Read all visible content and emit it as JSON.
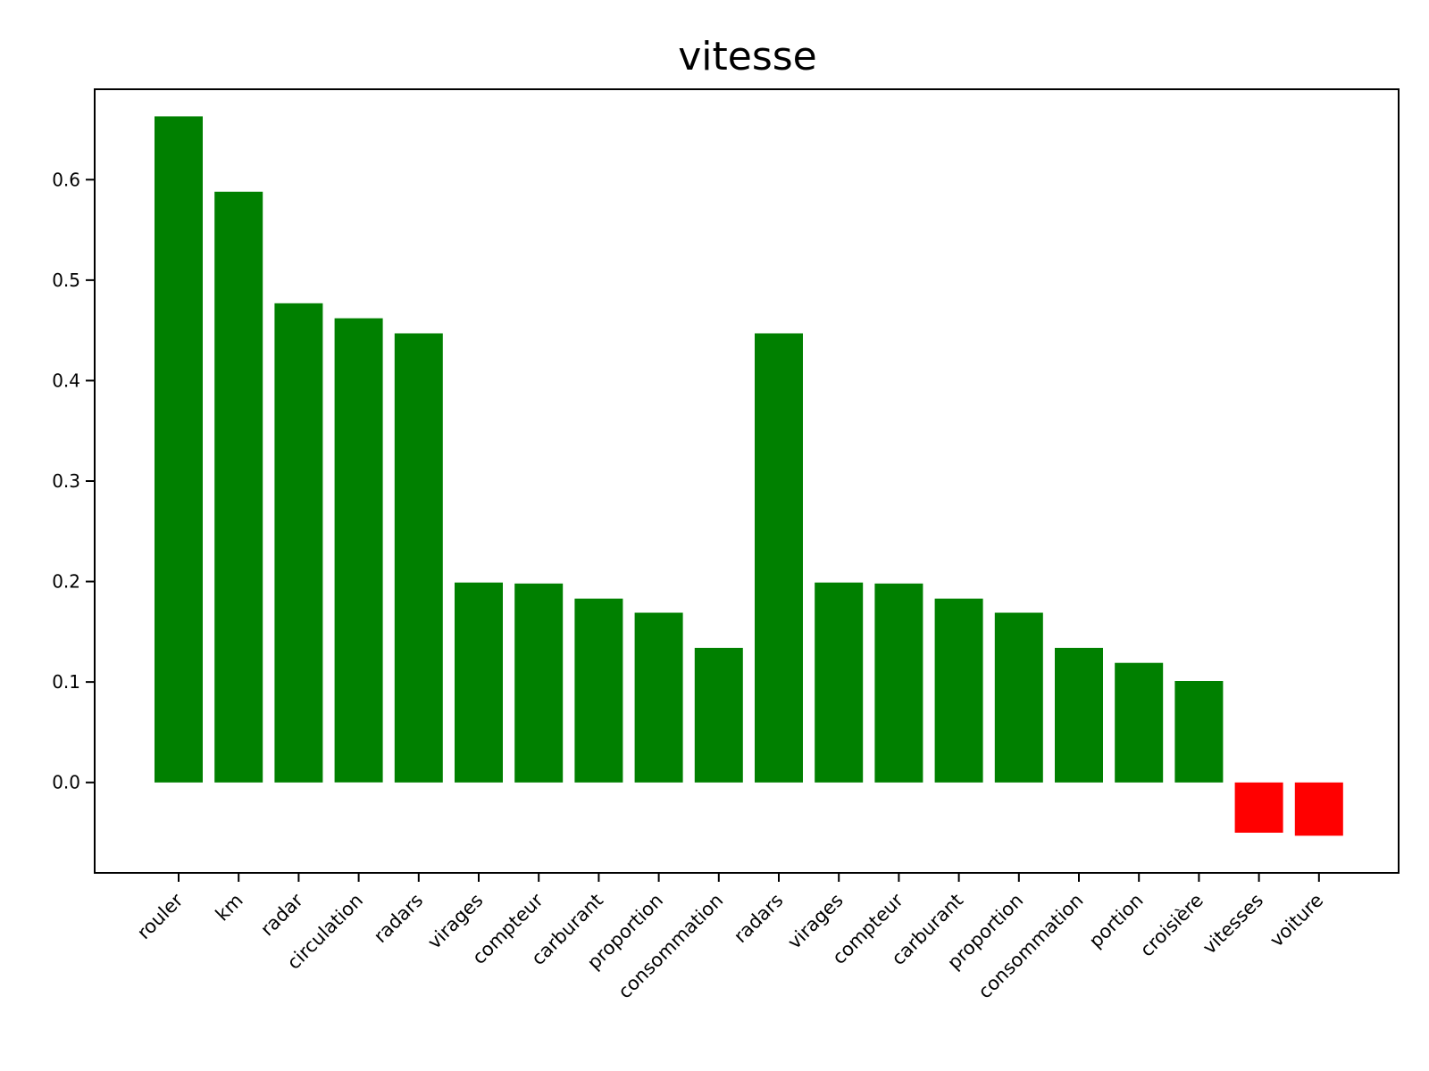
{
  "chart_data": {
    "type": "bar",
    "title": "vitesse",
    "xlabel": "",
    "ylabel": "",
    "categories": [
      "rouler",
      "km",
      "radar",
      "circulation",
      "radars",
      "virages",
      "compteur",
      "carburant",
      "proportion",
      "consommation",
      "radars",
      "virages",
      "compteur",
      "carburant",
      "proportion",
      "consommation",
      "portion",
      "croisière",
      "vitesses",
      "voiture"
    ],
    "values": [
      0.663,
      0.588,
      0.477,
      0.462,
      0.447,
      0.199,
      0.198,
      0.183,
      0.169,
      0.134,
      0.447,
      0.199,
      0.198,
      0.183,
      0.169,
      0.134,
      0.119,
      0.101,
      -0.05,
      -0.053
    ],
    "ylim": [
      -0.09,
      0.69
    ],
    "yticks": [
      0.0,
      0.1,
      0.2,
      0.3,
      0.4,
      0.5,
      0.6
    ],
    "ytick_labels": [
      "0.0",
      "0.1",
      "0.2",
      "0.3",
      "0.4",
      "0.5",
      "0.6"
    ],
    "grid": false,
    "colors": {
      "positive": "#008000",
      "negative": "#ff0000",
      "frame": "#000000"
    }
  }
}
